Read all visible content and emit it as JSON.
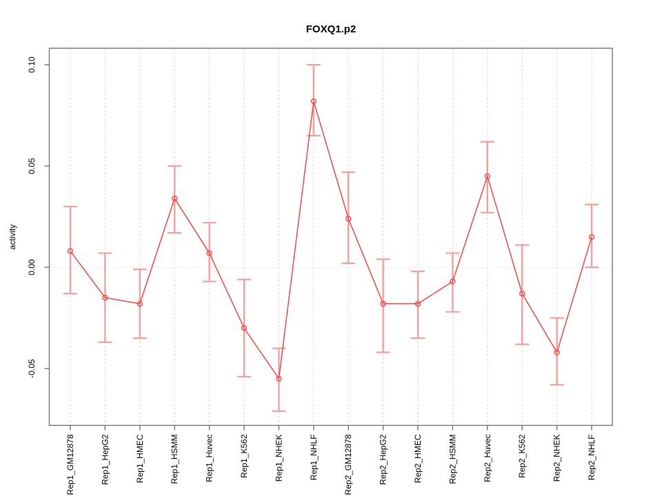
{
  "page": {
    "background": "#ffffff"
  },
  "chart_data": {
    "type": "line",
    "title": "FOXQ1.p2",
    "xlabel": "",
    "ylabel": "activity",
    "categories": [
      "Rep1_GM12878",
      "Rep1_HepG2",
      "Rep1_HMEC",
      "Rep1_HSMM",
      "Rep1_Huvec",
      "Rep1_K562",
      "Rep1_NHEK",
      "Rep1_NHLF",
      "Rep2_GM12878",
      "Rep2_HepG2",
      "Rep2_HMEC",
      "Rep2_HSMM",
      "Rep2_Huvec",
      "Rep2_K562",
      "Rep2_NHEK",
      "Rep2_NHLF"
    ],
    "series": [
      {
        "name": "activity",
        "marker": "open-circle",
        "values": [
          0.008,
          -0.015,
          -0.018,
          0.034,
          0.007,
          -0.03,
          -0.055,
          0.082,
          0.024,
          -0.018,
          -0.018,
          -0.007,
          0.045,
          -0.013,
          -0.042,
          0.015
        ],
        "error_low": [
          -0.013,
          -0.037,
          -0.035,
          0.017,
          -0.007,
          -0.054,
          -0.071,
          0.065,
          0.002,
          -0.042,
          -0.035,
          -0.022,
          0.027,
          -0.038,
          -0.058,
          0.0
        ],
        "error_high": [
          0.03,
          0.007,
          -0.001,
          0.05,
          0.022,
          -0.006,
          -0.04,
          0.1,
          0.047,
          0.004,
          -0.002,
          0.007,
          0.062,
          0.011,
          -0.025,
          0.031
        ]
      }
    ],
    "ylim": [
      -0.078,
      0.108
    ],
    "yticks": [
      -0.05,
      0.0,
      0.05,
      0.1
    ],
    "ytick_labels": [
      "-0.05",
      "0.00",
      "0.05",
      "0.10"
    ],
    "grid": {
      "vertical_dashed_per_category": true,
      "horizontal_dotted_zero_line": true,
      "legend": "none"
    },
    "colors": {
      "line": "#ff4646",
      "error_bar": "#f59f9f",
      "grid": "#d7d7d7",
      "axis": "#757575",
      "text": "#000000"
    }
  }
}
